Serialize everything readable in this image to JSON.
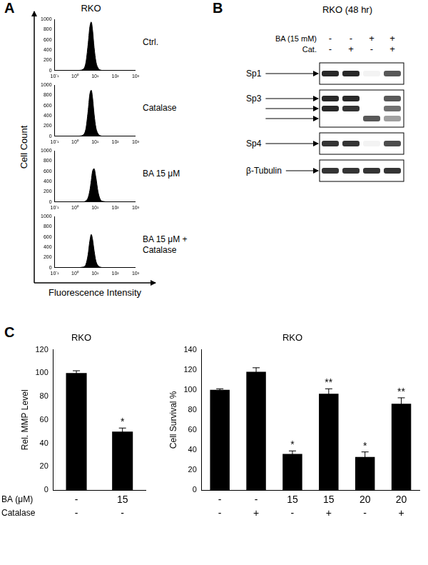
{
  "chart_data": [
    {
      "panel": "A",
      "type": "area",
      "title": "RKO",
      "xlabel": "Fluorescence Intensity",
      "ylabel": "Cell Count",
      "log": "x",
      "grid": false,
      "x": [
        1.5,
        2.5,
        3.5,
        4.5,
        5.5,
        6.5,
        7.5,
        9,
        11,
        14,
        18,
        25,
        40
      ],
      "series": [
        {
          "name": "Ctrl.",
          "color": "#000000",
          "values": [
            0,
            20,
            150,
            500,
            850,
            950,
            800,
            450,
            180,
            50,
            10,
            0,
            0
          ]
        },
        {
          "name": "Catalase",
          "color": "#000000",
          "values": [
            0,
            20,
            140,
            480,
            820,
            900,
            760,
            430,
            170,
            50,
            10,
            0,
            0
          ]
        },
        {
          "name": "BA 15 μM",
          "color": "#000000",
          "values": [
            0,
            0,
            20,
            80,
            220,
            420,
            600,
            650,
            480,
            200,
            50,
            10,
            0
          ]
        },
        {
          "name": "BA 15 μM + Catalase",
          "color": "#000000",
          "values": [
            0,
            10,
            60,
            250,
            520,
            650,
            560,
            330,
            130,
            40,
            10,
            0,
            0
          ]
        }
      ],
      "xlim": [
        0.1,
        1000
      ],
      "xticks": [
        {
          "value": 0.1,
          "label": "10⁻¹"
        },
        {
          "value": 1,
          "label": "10⁰"
        },
        {
          "value": 10,
          "label": "10¹"
        },
        {
          "value": 100,
          "label": "10²"
        },
        {
          "value": 1000,
          "label": "10³"
        }
      ],
      "ylim": [
        0,
        1000
      ],
      "yticks": [
        0,
        200,
        400,
        600,
        800,
        1000
      ]
    },
    {
      "panel": "C",
      "type": "bar",
      "title": "RKO",
      "ylabel": "Rel. MMP Level",
      "row_labels": [
        "BA (μM)",
        "Catalase"
      ],
      "categories": [
        [
          "-",
          "-"
        ],
        [
          "15",
          "-"
        ]
      ],
      "values": [
        100,
        50
      ],
      "errors": [
        2,
        3
      ],
      "significance": [
        null,
        "*"
      ],
      "color": "#000000",
      "grid": false,
      "ylim": [
        0,
        120
      ],
      "yticks": [
        0,
        20,
        40,
        60,
        80,
        100,
        120
      ]
    },
    {
      "panel": "C",
      "type": "bar",
      "title": "RKO",
      "ylabel": "Cell Survival %",
      "categories": [
        [
          "-",
          "-"
        ],
        [
          "-",
          "+"
        ],
        [
          "15",
          "-"
        ],
        [
          "15",
          "+"
        ],
        [
          "20",
          "-"
        ],
        [
          "20",
          "+"
        ]
      ],
      "values": [
        100,
        118,
        36,
        96,
        33,
        86
      ],
      "errors": [
        1,
        4,
        3,
        5,
        5,
        6
      ],
      "significance": [
        null,
        null,
        "*",
        "**",
        "*",
        "**"
      ],
      "color": "#000000",
      "grid": false,
      "ylim": [
        0,
        140
      ],
      "yticks": [
        0,
        20,
        40,
        60,
        80,
        100,
        120,
        140
      ]
    }
  ],
  "western_blot": {
    "panel": "B",
    "title": "RKO (48 hr)",
    "treatments": [
      {
        "label": "BA (15 mM)",
        "lanes": [
          "-",
          "-",
          "+",
          "+"
        ]
      },
      {
        "label": "Cat.",
        "lanes": [
          "-",
          "+",
          "-",
          "+"
        ]
      }
    ],
    "proteins": [
      {
        "label": "Sp1",
        "bands": [
          [
            0.9,
            0.9,
            0.05,
            0.7
          ]
        ]
      },
      {
        "label": "Sp3",
        "bands": [
          [
            0.9,
            0.9,
            0,
            0.7
          ],
          [
            0.9,
            0.85,
            0,
            0.6
          ],
          [
            0,
            0,
            0.7,
            0.4
          ]
        ]
      },
      {
        "label": "Sp4",
        "bands": [
          [
            0.85,
            0.85,
            0.05,
            0.75
          ]
        ]
      },
      {
        "label": "β-Tubulin",
        "bands": [
          [
            0.85,
            0.85,
            0.85,
            0.85
          ]
        ]
      }
    ]
  }
}
